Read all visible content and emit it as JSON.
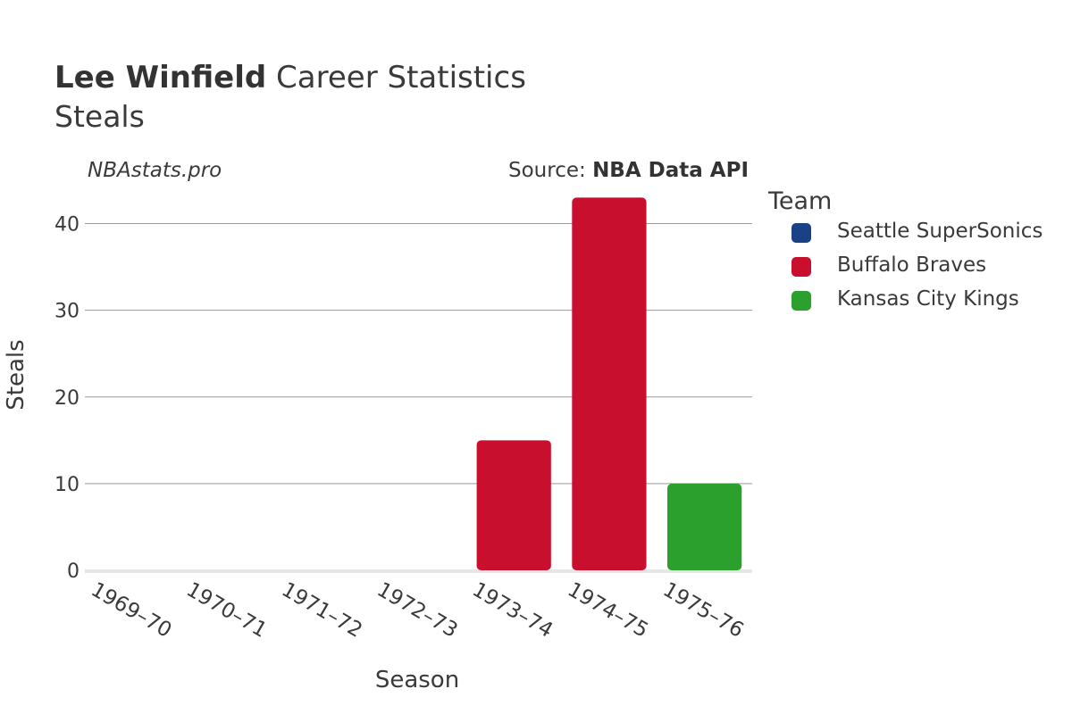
{
  "header": {
    "title_bold": "Lee Winfield",
    "title_rest": " Career Statistics",
    "subtitle": "Steals",
    "site": "NBAstats.pro",
    "source_prefix": "Source: ",
    "source_bold": "NBA Data API"
  },
  "legend": {
    "title": "Team",
    "items": [
      {
        "label": "Seattle SuperSonics",
        "color": "#1a4085"
      },
      {
        "label": "Buffalo Braves",
        "color": "#c8102e"
      },
      {
        "label": "Kansas City Kings",
        "color": "#2ca02c"
      }
    ]
  },
  "chart_data": {
    "type": "bar",
    "title": "Lee Winfield Career Statistics",
    "subtitle": "Steals",
    "xlabel": "Season",
    "ylabel": "Steals",
    "ylim": [
      0,
      45
    ],
    "yticks": [
      0,
      10,
      20,
      30,
      40
    ],
    "grid": true,
    "legend_placement": "right",
    "categories": [
      "1969–70",
      "1970–71",
      "1971–72",
      "1972–73",
      "1973–74",
      "1974–75",
      "1975–76"
    ],
    "series": [
      {
        "name": "Seattle SuperSonics",
        "color": "#1a4085",
        "values": [
          0,
          0,
          0,
          0,
          null,
          null,
          null
        ]
      },
      {
        "name": "Buffalo Braves",
        "color": "#c8102e",
        "values": [
          null,
          null,
          null,
          null,
          15,
          43,
          null
        ]
      },
      {
        "name": "Kansas City Kings",
        "color": "#2ca02c",
        "values": [
          null,
          null,
          null,
          null,
          null,
          null,
          10
        ]
      }
    ]
  }
}
